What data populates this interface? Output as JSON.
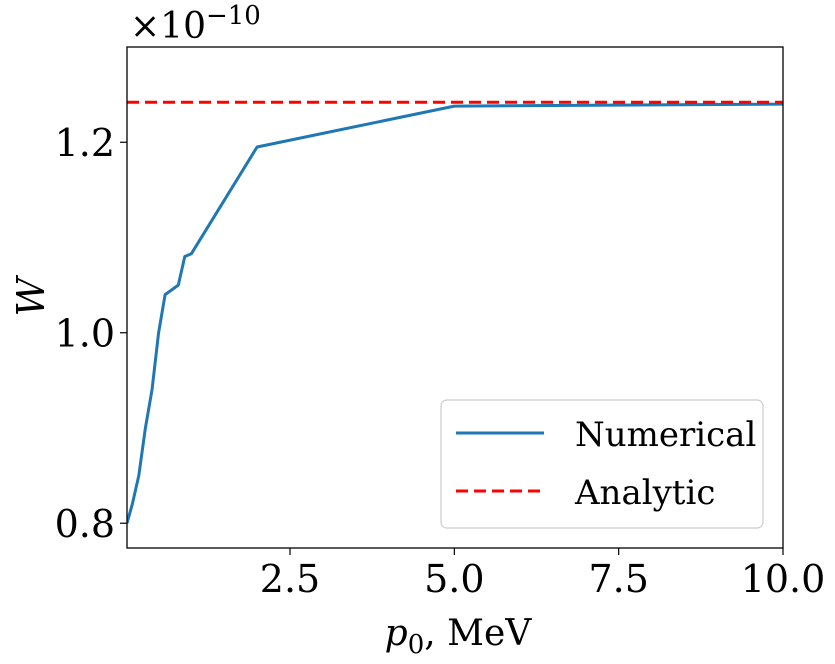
{
  "chart_data": {
    "type": "line",
    "title": "",
    "xlabel": "p0, MeV",
    "xlabel_parts": {
      "symbol": "p",
      "subscript": "0",
      "rest": ", MeV"
    },
    "ylabel": "W",
    "y_scale_label": {
      "base": "×10",
      "exponent": "−10"
    },
    "xlim": [
      0.02,
      10.0
    ],
    "ylim": [
      0.774,
      1.3
    ],
    "x_ticks": [
      2.5,
      5.0,
      7.5,
      10.0
    ],
    "x_tick_labels": [
      "2.5",
      "5.0",
      "7.5",
      "10.0"
    ],
    "y_ticks": [
      0.8,
      1.0,
      1.2
    ],
    "y_tick_labels": [
      "0.8",
      "1.0",
      "1.2"
    ],
    "grid": false,
    "legend_position": "lower-right",
    "series": [
      {
        "name": "Numerical",
        "color": "#1f77b4",
        "style": "solid",
        "x": [
          0.02,
          0.1,
          0.2,
          0.3,
          0.4,
          0.5,
          0.6,
          0.7,
          0.8,
          0.9,
          1.0,
          2.0,
          5.0,
          10.0
        ],
        "y": [
          0.8,
          0.82,
          0.85,
          0.9,
          0.94,
          1.0,
          1.04,
          1.045,
          1.05,
          1.08,
          1.083,
          1.195,
          1.238,
          1.24
        ]
      },
      {
        "name": "Analytic",
        "color": "#ff0000",
        "style": "dashed",
        "x": [
          0.02,
          10.0
        ],
        "y": [
          1.242,
          1.242
        ]
      }
    ]
  }
}
